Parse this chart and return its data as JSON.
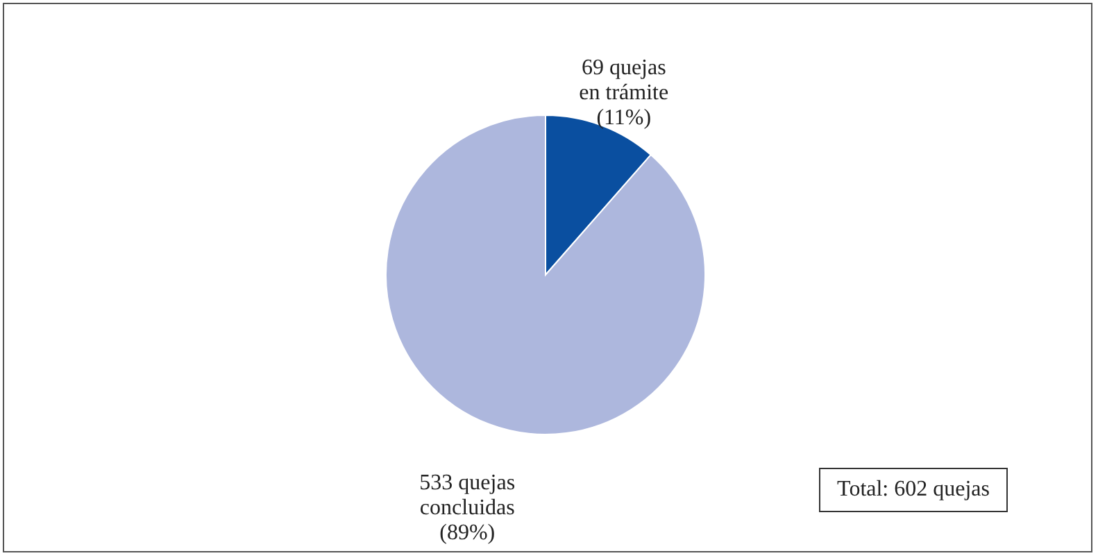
{
  "chart_data": {
    "type": "pie",
    "categories": [
      "69 quejas\nen trámite\n(11%)",
      "533 quejas\nconcluidas\n(89%)"
    ],
    "values": [
      69,
      533
    ],
    "colors": [
      "#0a4fa0",
      "#adb7dd"
    ],
    "annotations": [
      "Total: 602 quejas"
    ]
  }
}
